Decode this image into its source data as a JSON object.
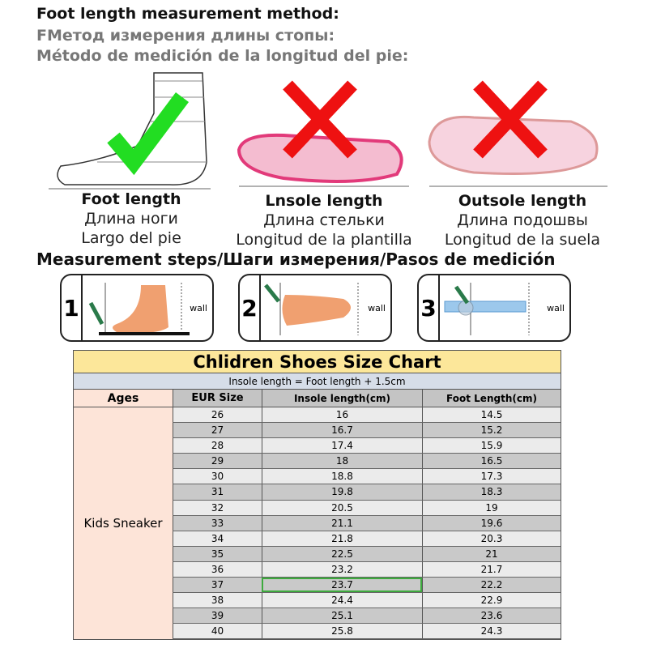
{
  "heading": {
    "en": "Foot length measurement method:",
    "ru": "FМетод измерения длины стопы:",
    "es": "Método de medición de la longitud del pie:"
  },
  "methods": [
    {
      "en": "Foot length",
      "ru": "Длина ноги",
      "es": "Largo del pie",
      "mark": "check-icon",
      "mark_color": "#22dd22"
    },
    {
      "en": "Lnsole length",
      "ru": "Длина стельки",
      "es": "Longitud de la plantilla",
      "mark": "cross-icon",
      "mark_color": "#ee1111"
    },
    {
      "en": "Outsole length",
      "ru": "Длина подошвы",
      "es": "Longitud de la suela",
      "mark": "cross-icon",
      "mark_color": "#ee1111"
    }
  ],
  "steps_heading": "Measurement steps/Шаги измерения/Pasos de medición",
  "steps": [
    {
      "num": "1",
      "wall": "wall"
    },
    {
      "num": "2",
      "wall": "wall"
    },
    {
      "num": "3",
      "wall": "wall"
    }
  ],
  "table": {
    "title": "Chlidren Shoes Size Chart",
    "subtitle": "Insole length = Foot length + 1.5cm",
    "headers": [
      "Ages",
      "EUR Size",
      "Insole length(cm)",
      "Foot Length(cm)"
    ],
    "ages": "Kids Sneaker",
    "highlighted_row": "37",
    "rows": [
      [
        "26",
        "16",
        "14.5"
      ],
      [
        "27",
        "16.7",
        "15.2"
      ],
      [
        "28",
        "17.4",
        "15.9"
      ],
      [
        "29",
        "18",
        "16.5"
      ],
      [
        "30",
        "18.8",
        "17.3"
      ],
      [
        "31",
        "19.8",
        "18.3"
      ],
      [
        "32",
        "20.5",
        "19"
      ],
      [
        "33",
        "21.1",
        "19.6"
      ],
      [
        "34",
        "21.8",
        "20.3"
      ],
      [
        "35",
        "22.5",
        "21"
      ],
      [
        "36",
        "23.2",
        "21.7"
      ],
      [
        "37",
        "23.7",
        "22.2"
      ],
      [
        "38",
        "24.4",
        "22.9"
      ],
      [
        "39",
        "25.1",
        "23.6"
      ],
      [
        "40",
        "25.8",
        "24.3"
      ]
    ]
  }
}
